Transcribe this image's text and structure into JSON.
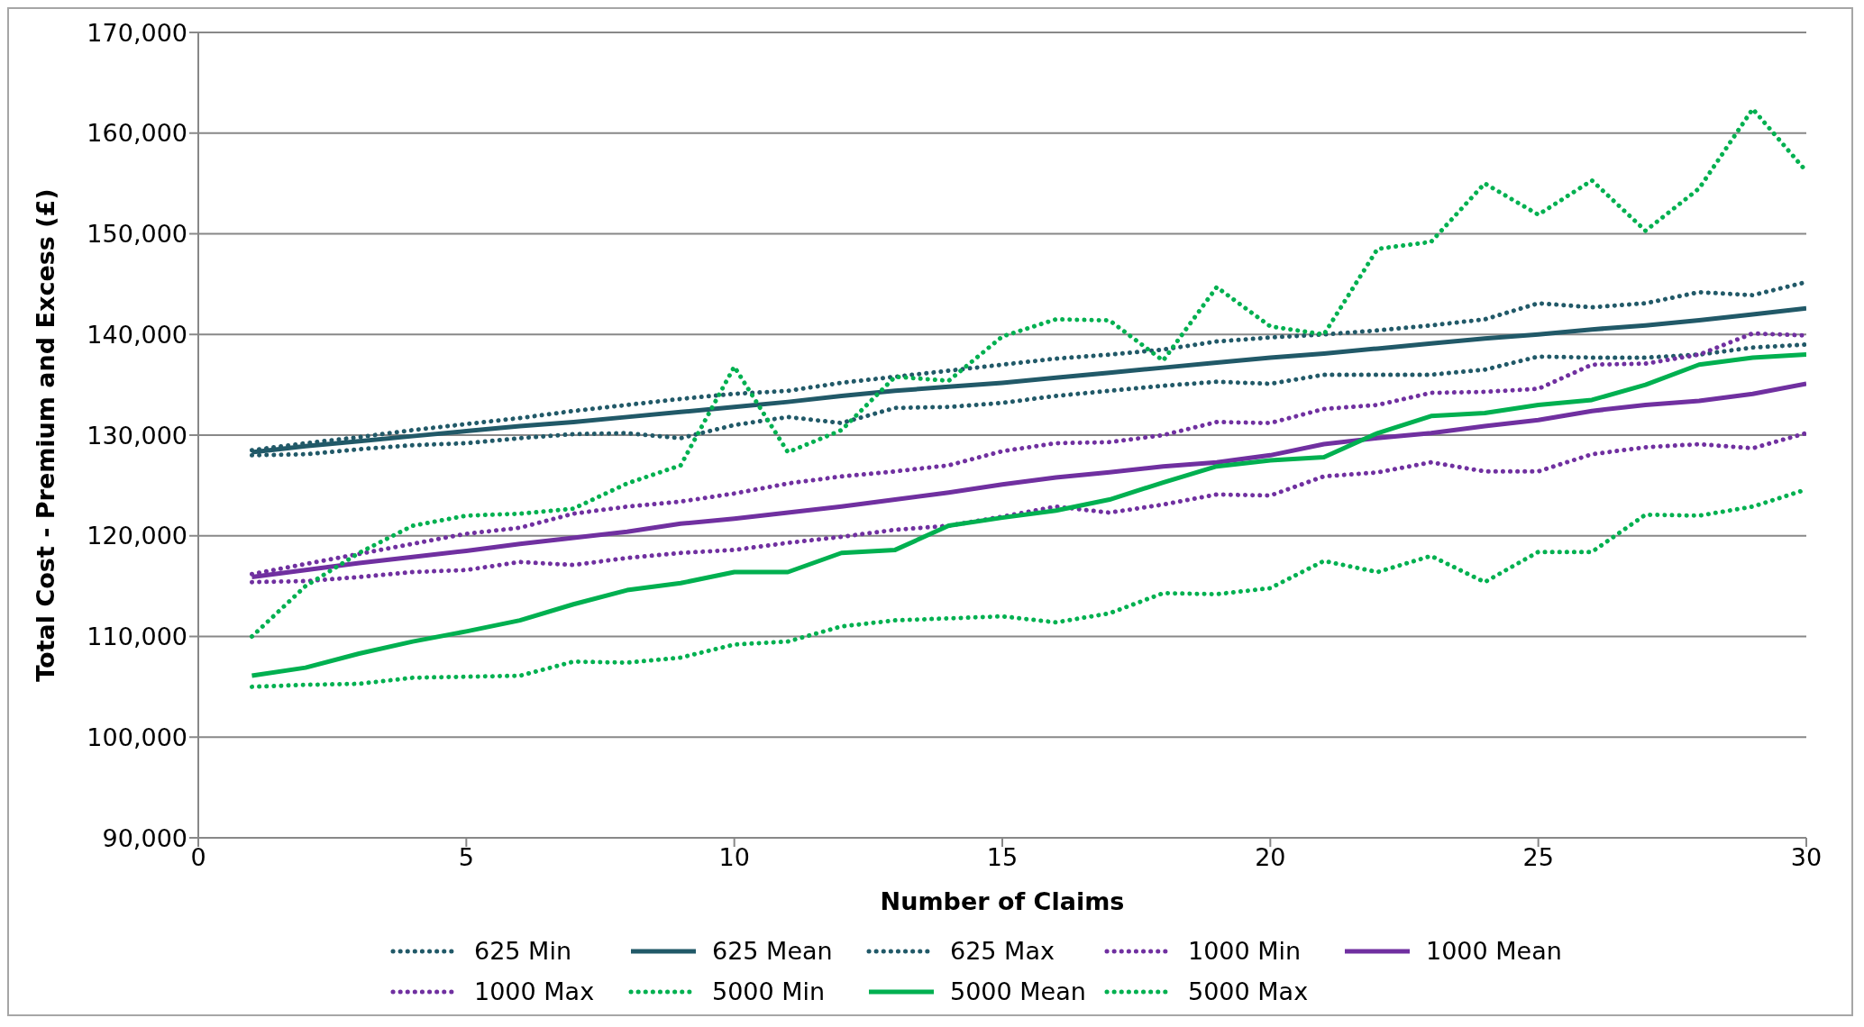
{
  "chart_data": {
    "type": "line",
    "xlabel": "Number of Claims",
    "ylabel": "Total Cost - Premium and Excess (£)",
    "x": [
      1,
      2,
      3,
      4,
      5,
      6,
      7,
      8,
      9,
      10,
      11,
      12,
      13,
      14,
      15,
      16,
      17,
      18,
      19,
      20,
      21,
      22,
      23,
      24,
      25,
      26,
      27,
      28,
      29,
      30
    ],
    "xlim": [
      0,
      30
    ],
    "xticks": [
      0,
      5,
      10,
      15,
      20,
      25,
      30
    ],
    "ylim": [
      90000,
      170000
    ],
    "yticks": [
      {
        "value": 90000,
        "label": "90,000"
      },
      {
        "value": 100000,
        "label": "100,000"
      },
      {
        "value": 110000,
        "label": "110,000"
      },
      {
        "value": 120000,
        "label": "120,000"
      },
      {
        "value": 130000,
        "label": "130,000"
      },
      {
        "value": 140000,
        "label": "140,000"
      },
      {
        "value": 150000,
        "label": "150,000"
      },
      {
        "value": 160000,
        "label": "160,000"
      },
      {
        "value": 170000,
        "label": "170,000"
      }
    ],
    "grid": "y",
    "legend": "bottom",
    "marker": "none",
    "series": [
      {
        "name": "625 Min",
        "color": "#215968",
        "line_style": "dotted",
        "values": [
          128000,
          128100,
          128600,
          129000,
          129200,
          129700,
          130100,
          130200,
          129700,
          131000,
          131800,
          131200,
          132700,
          132800,
          133200,
          133900,
          134400,
          134900,
          135300,
          135100,
          136000,
          136000,
          136000,
          136500,
          137800,
          137700,
          137700,
          138000,
          138700,
          139000
        ]
      },
      {
        "name": "625 Mean",
        "color": "#215968",
        "line_style": "solid",
        "values": [
          128300,
          128900,
          129400,
          129900,
          130400,
          130900,
          131300,
          131800,
          132300,
          132800,
          133300,
          133900,
          134400,
          134800,
          135200,
          135700,
          136200,
          136700,
          137200,
          137700,
          138100,
          138600,
          139100,
          139600,
          140000,
          140500,
          140900,
          141400,
          142000,
          142600
        ]
      },
      {
        "name": "625 Max",
        "color": "#215968",
        "line_style": "dotted",
        "values": [
          128500,
          129200,
          129800,
          130500,
          131100,
          131700,
          132400,
          133000,
          133600,
          134100,
          134400,
          135200,
          135800,
          136400,
          137000,
          137600,
          138000,
          138500,
          139300,
          139700,
          140000,
          140400,
          140900,
          141500,
          143100,
          142700,
          143100,
          144200,
          143900,
          145200
        ]
      },
      {
        "name": "1000 Min",
        "color": "#7030a0",
        "line_style": "dotted",
        "values": [
          115400,
          115500,
          115900,
          116400,
          116600,
          117400,
          117100,
          117800,
          118300,
          118600,
          119300,
          119900,
          120600,
          121000,
          121900,
          122900,
          122300,
          123100,
          124100,
          124000,
          125900,
          126300,
          127300,
          126400,
          126400,
          128100,
          128800,
          129100,
          128700,
          130200
        ]
      },
      {
        "name": "1000 Mean",
        "color": "#7030a0",
        "line_style": "solid",
        "values": [
          115900,
          116600,
          117300,
          117900,
          118500,
          119200,
          119800,
          120400,
          121200,
          121700,
          122300,
          122900,
          123600,
          124300,
          125100,
          125800,
          126300,
          126900,
          127300,
          128000,
          129100,
          129700,
          130200,
          130900,
          131500,
          132400,
          133000,
          133400,
          134100,
          135100
        ]
      },
      {
        "name": "1000 Max",
        "color": "#7030a0",
        "line_style": "dotted",
        "values": [
          116200,
          117200,
          118200,
          119200,
          120200,
          120800,
          122200,
          122900,
          123400,
          124200,
          125200,
          125900,
          126400,
          127000,
          128400,
          129200,
          129300,
          130000,
          131300,
          131200,
          132600,
          133000,
          134200,
          134300,
          134600,
          137000,
          137100,
          138000,
          140100,
          139900
        ]
      },
      {
        "name": "5000 Min",
        "color": "#00b050",
        "line_style": "dotted",
        "values": [
          105000,
          105200,
          105300,
          105900,
          106000,
          106100,
          107500,
          107400,
          107900,
          109200,
          109500,
          111000,
          111600,
          111800,
          112000,
          111400,
          112300,
          114300,
          114200,
          114800,
          117500,
          116400,
          118000,
          115400,
          118400,
          118400,
          122100,
          122000,
          122900,
          124600
        ]
      },
      {
        "name": "5000 Mean",
        "color": "#00b050",
        "line_style": "solid",
        "values": [
          106100,
          106900,
          108300,
          109500,
          110500,
          111600,
          113200,
          114600,
          115300,
          116400,
          116400,
          118300,
          118600,
          121000,
          121800,
          122500,
          123600,
          125300,
          126900,
          127500,
          127800,
          130200,
          131900,
          132200,
          133000,
          133500,
          135000,
          137000,
          137700,
          138000
        ]
      },
      {
        "name": "5000 Max",
        "color": "#00b050",
        "line_style": "dotted",
        "values": [
          110000,
          115000,
          118300,
          121000,
          122000,
          122200,
          122700,
          125200,
          127000,
          136800,
          128300,
          130500,
          135800,
          135400,
          139800,
          141500,
          141400,
          137400,
          144700,
          140800,
          140000,
          148500,
          149200,
          155000,
          151900,
          155300,
          150300,
          154500,
          162400,
          156200
        ]
      }
    ]
  }
}
